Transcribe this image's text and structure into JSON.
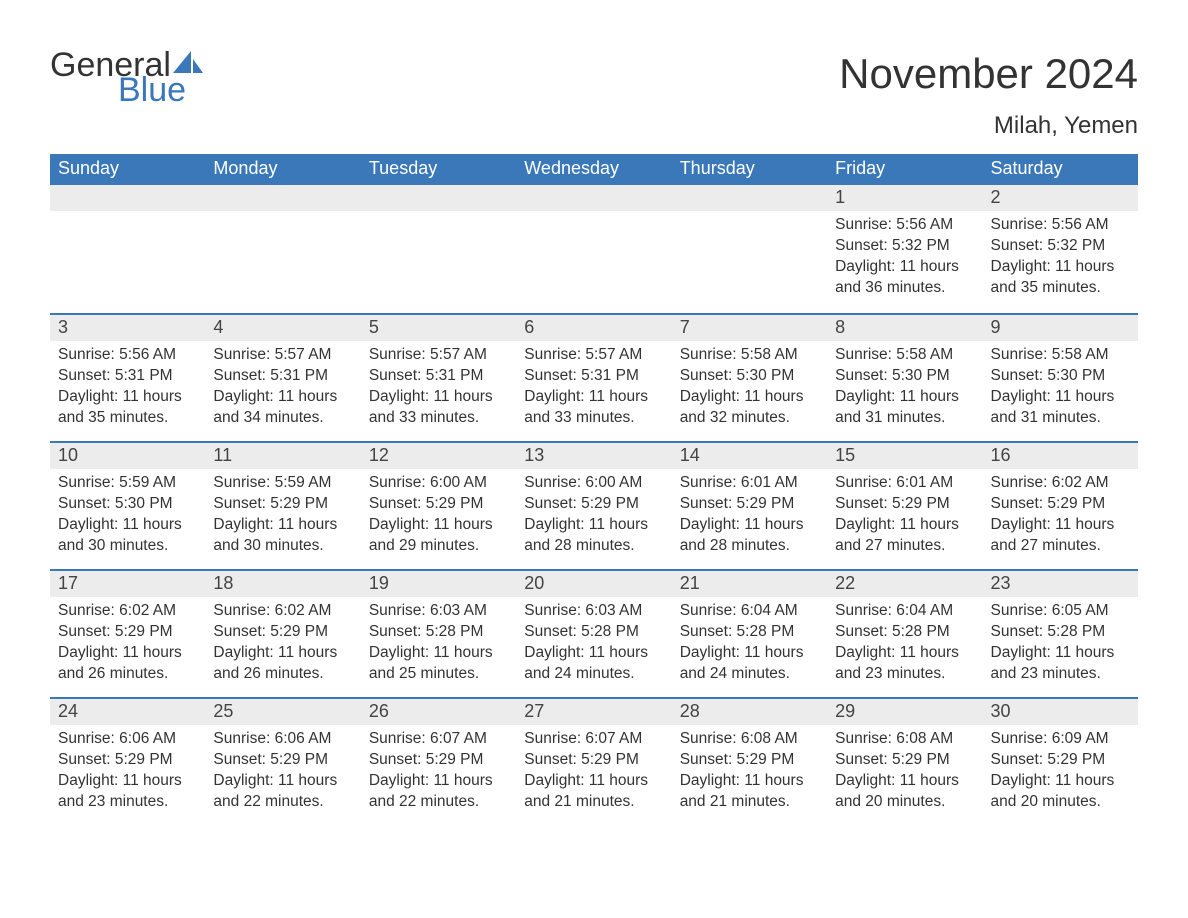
{
  "brand": {
    "word1": "General",
    "word2": "Blue",
    "word1_color": "#333333",
    "word2_color": "#3a78b9",
    "sail_color": "#3a78b9"
  },
  "title": "November 2024",
  "location": "Milah, Yemen",
  "colors": {
    "header_bg": "#3a78b9",
    "header_text": "#ffffff",
    "daynum_bg": "#ececec",
    "daynum_text": "#444444",
    "body_text": "#333333",
    "week_divider": "#3a78b9",
    "page_bg": "#ffffff"
  },
  "typography": {
    "title_fontsize": 42,
    "location_fontsize": 24,
    "dow_fontsize": 18,
    "daynum_fontsize": 18,
    "body_fontsize": 15.5
  },
  "days_of_week": [
    "Sunday",
    "Monday",
    "Tuesday",
    "Wednesday",
    "Thursday",
    "Friday",
    "Saturday"
  ],
  "weeks": [
    [
      {
        "blank": true
      },
      {
        "blank": true
      },
      {
        "blank": true
      },
      {
        "blank": true
      },
      {
        "blank": true
      },
      {
        "n": "1",
        "sunrise": "5:56 AM",
        "sunset": "5:32 PM",
        "daylight": "11 hours and 36 minutes."
      },
      {
        "n": "2",
        "sunrise": "5:56 AM",
        "sunset": "5:32 PM",
        "daylight": "11 hours and 35 minutes."
      }
    ],
    [
      {
        "n": "3",
        "sunrise": "5:56 AM",
        "sunset": "5:31 PM",
        "daylight": "11 hours and 35 minutes."
      },
      {
        "n": "4",
        "sunrise": "5:57 AM",
        "sunset": "5:31 PM",
        "daylight": "11 hours and 34 minutes."
      },
      {
        "n": "5",
        "sunrise": "5:57 AM",
        "sunset": "5:31 PM",
        "daylight": "11 hours and 33 minutes."
      },
      {
        "n": "6",
        "sunrise": "5:57 AM",
        "sunset": "5:31 PM",
        "daylight": "11 hours and 33 minutes."
      },
      {
        "n": "7",
        "sunrise": "5:58 AM",
        "sunset": "5:30 PM",
        "daylight": "11 hours and 32 minutes."
      },
      {
        "n": "8",
        "sunrise": "5:58 AM",
        "sunset": "5:30 PM",
        "daylight": "11 hours and 31 minutes."
      },
      {
        "n": "9",
        "sunrise": "5:58 AM",
        "sunset": "5:30 PM",
        "daylight": "11 hours and 31 minutes."
      }
    ],
    [
      {
        "n": "10",
        "sunrise": "5:59 AM",
        "sunset": "5:30 PM",
        "daylight": "11 hours and 30 minutes."
      },
      {
        "n": "11",
        "sunrise": "5:59 AM",
        "sunset": "5:29 PM",
        "daylight": "11 hours and 30 minutes."
      },
      {
        "n": "12",
        "sunrise": "6:00 AM",
        "sunset": "5:29 PM",
        "daylight": "11 hours and 29 minutes."
      },
      {
        "n": "13",
        "sunrise": "6:00 AM",
        "sunset": "5:29 PM",
        "daylight": "11 hours and 28 minutes."
      },
      {
        "n": "14",
        "sunrise": "6:01 AM",
        "sunset": "5:29 PM",
        "daylight": "11 hours and 28 minutes."
      },
      {
        "n": "15",
        "sunrise": "6:01 AM",
        "sunset": "5:29 PM",
        "daylight": "11 hours and 27 minutes."
      },
      {
        "n": "16",
        "sunrise": "6:02 AM",
        "sunset": "5:29 PM",
        "daylight": "11 hours and 27 minutes."
      }
    ],
    [
      {
        "n": "17",
        "sunrise": "6:02 AM",
        "sunset": "5:29 PM",
        "daylight": "11 hours and 26 minutes."
      },
      {
        "n": "18",
        "sunrise": "6:02 AM",
        "sunset": "5:29 PM",
        "daylight": "11 hours and 26 minutes."
      },
      {
        "n": "19",
        "sunrise": "6:03 AM",
        "sunset": "5:28 PM",
        "daylight": "11 hours and 25 minutes."
      },
      {
        "n": "20",
        "sunrise": "6:03 AM",
        "sunset": "5:28 PM",
        "daylight": "11 hours and 24 minutes."
      },
      {
        "n": "21",
        "sunrise": "6:04 AM",
        "sunset": "5:28 PM",
        "daylight": "11 hours and 24 minutes."
      },
      {
        "n": "22",
        "sunrise": "6:04 AM",
        "sunset": "5:28 PM",
        "daylight": "11 hours and 23 minutes."
      },
      {
        "n": "23",
        "sunrise": "6:05 AM",
        "sunset": "5:28 PM",
        "daylight": "11 hours and 23 minutes."
      }
    ],
    [
      {
        "n": "24",
        "sunrise": "6:06 AM",
        "sunset": "5:29 PM",
        "daylight": "11 hours and 23 minutes."
      },
      {
        "n": "25",
        "sunrise": "6:06 AM",
        "sunset": "5:29 PM",
        "daylight": "11 hours and 22 minutes."
      },
      {
        "n": "26",
        "sunrise": "6:07 AM",
        "sunset": "5:29 PM",
        "daylight": "11 hours and 22 minutes."
      },
      {
        "n": "27",
        "sunrise": "6:07 AM",
        "sunset": "5:29 PM",
        "daylight": "11 hours and 21 minutes."
      },
      {
        "n": "28",
        "sunrise": "6:08 AM",
        "sunset": "5:29 PM",
        "daylight": "11 hours and 21 minutes."
      },
      {
        "n": "29",
        "sunrise": "6:08 AM",
        "sunset": "5:29 PM",
        "daylight": "11 hours and 20 minutes."
      },
      {
        "n": "30",
        "sunrise": "6:09 AM",
        "sunset": "5:29 PM",
        "daylight": "11 hours and 20 minutes."
      }
    ]
  ],
  "labels": {
    "sunrise": "Sunrise:",
    "sunset": "Sunset:",
    "daylight": "Daylight:"
  }
}
